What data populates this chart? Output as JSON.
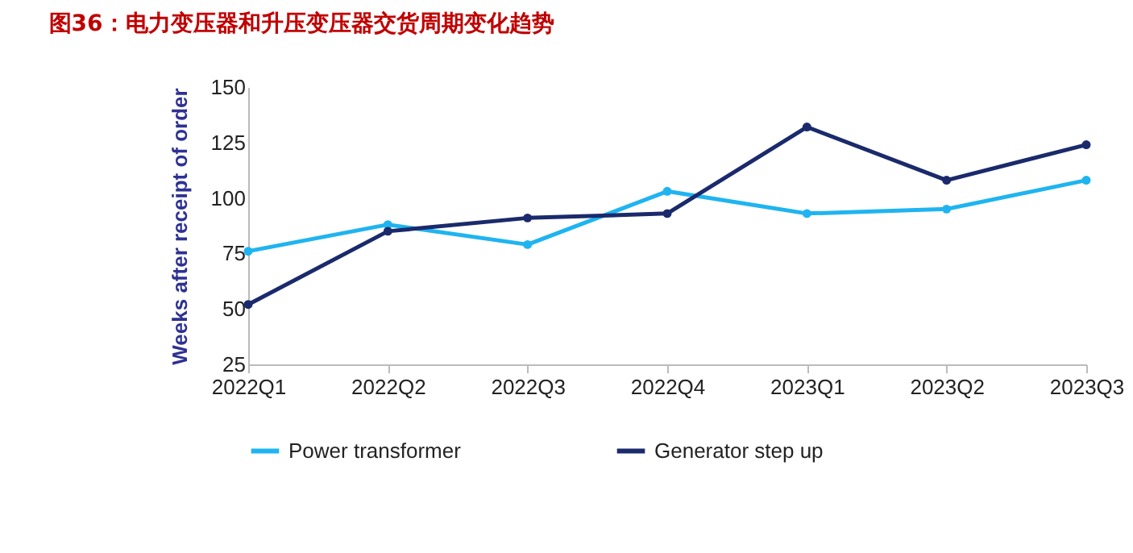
{
  "chart_data": {
    "type": "line",
    "title": "图36：电力变压器和升压变压器交货周期变化趋势",
    "ylabel": "Weeks after receipt of order",
    "categories": [
      "2022Q1",
      "2022Q2",
      "2022Q3",
      "2022Q4",
      "2023Q1",
      "2023Q2",
      "2023Q3"
    ],
    "series": [
      {
        "name": "Power transformer",
        "color": "#1fb4f0",
        "values": [
          76,
          88,
          79,
          103,
          93,
          95,
          108
        ]
      },
      {
        "name": "Generator step up",
        "color": "#1a2a6c",
        "values": [
          52,
          85,
          91,
          93,
          132,
          108,
          124
        ]
      }
    ],
    "ylim": [
      25,
      150
    ],
    "yticks": [
      25,
      50,
      75,
      100,
      125,
      150
    ],
    "grid": false,
    "legend": "bottom",
    "marker": "circle",
    "line_style": "solid"
  }
}
